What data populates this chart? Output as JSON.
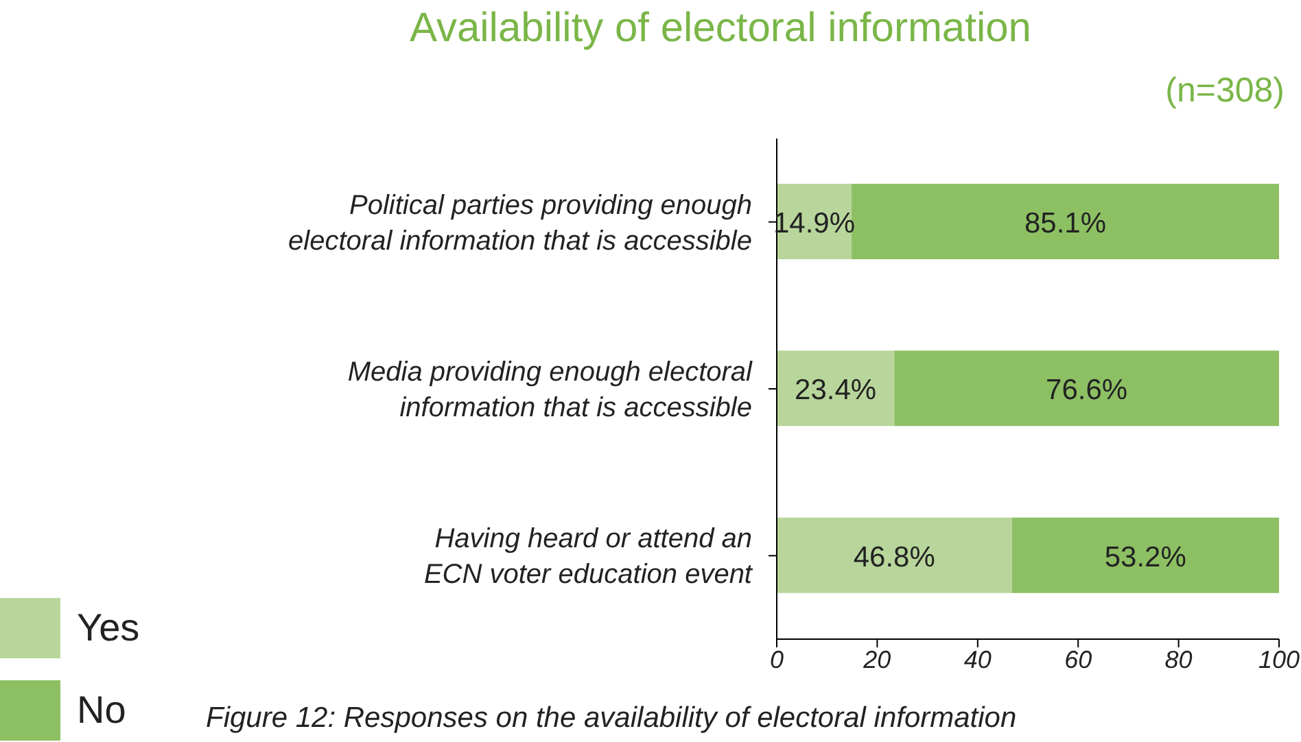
{
  "chart_data": {
    "type": "bar",
    "orientation": "horizontal",
    "stacked": true,
    "title": "Availability of electoral information",
    "categories": [
      "Political parties providing enough electoral information that is accessible",
      "Media providing enough electoral information that is accessible",
      "Having heard or attend an ECN voter education event"
    ],
    "series": [
      {
        "name": "Yes",
        "color": "#b8d69b",
        "values": [
          14.9,
          23.4,
          46.8
        ],
        "value_labels": [
          "14.9%",
          "23.4%",
          "46.8%"
        ]
      },
      {
        "name": "No",
        "color": "#8dc063",
        "values": [
          85.1,
          76.6,
          53.2
        ],
        "value_labels": [
          "85.1%",
          "76.6%",
          "53.2%"
        ]
      }
    ],
    "xlim": [
      0,
      100
    ],
    "xticks": [
      0,
      20,
      40,
      60,
      80,
      100
    ],
    "legend": "bottom left",
    "annotations": [
      "(n=308)",
      "Figure 12: Responses on the availability of electoral information"
    ]
  }
}
